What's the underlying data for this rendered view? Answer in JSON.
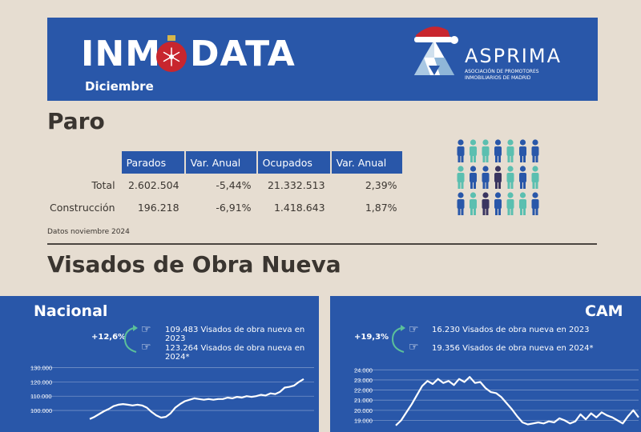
{
  "header": {
    "brand_left": "INM",
    "brand_right": "DATA",
    "month": "Diciembre",
    "partner_name": "ASPRIMA",
    "partner_subtitle_1": "ASOCIACIÓN DE PROMOTORES",
    "partner_subtitle_2": "INMOBILIARIOS DE MADRID",
    "colors": {
      "banner": "#2957a9",
      "background": "#e6ddd1",
      "ornament": "#c8262e"
    }
  },
  "paro": {
    "title": "Paro",
    "columns": [
      "Parados",
      "Var. Anual",
      "Ocupados",
      "Var. Anual"
    ],
    "rows": [
      {
        "label": "Total",
        "values": [
          "2.602.504",
          "-5,44%",
          "21.332.513",
          "2,39%"
        ]
      },
      {
        "label": "Construcción",
        "values": [
          "196.218",
          "-6,91%",
          "1.418.643",
          "1,87%"
        ]
      }
    ],
    "source": "Datos noviembre 2024"
  },
  "visados": {
    "title": "Visados de Obra Nueva",
    "nacional": {
      "title": "Nacional",
      "growth": "+12,6%",
      "note_2023": "109.483 Visados de obra nueva en 2023",
      "note_2024": "123.264 Visados de obra nueva en 2024*",
      "y_ticks": [
        "130.000",
        "120.000",
        "110.000",
        "100.000"
      ]
    },
    "cam": {
      "title": "CAM",
      "growth": "+19,3%",
      "note_2023": "16.230 Visados de obra nueva en 2023",
      "note_2024": "19.356 Visados de obra nueva en 2024*",
      "y_ticks": [
        "24.000",
        "23.000",
        "22.000",
        "21.000",
        "20.000",
        "19.000"
      ]
    }
  },
  "chart_data": [
    {
      "type": "line",
      "title": "Nacional",
      "ylim": [
        95000,
        132000
      ],
      "y_ticks": [
        100000,
        110000,
        120000,
        130000
      ],
      "values": [
        94000,
        95500,
        97500,
        99500,
        101000,
        103000,
        104000,
        104500,
        104000,
        103500,
        104000,
        103500,
        102000,
        99000,
        96500,
        95000,
        95500,
        98000,
        102000,
        104500,
        106500,
        107500,
        108500,
        108000,
        107500,
        108000,
        107500,
        108000,
        108000,
        109000,
        108500,
        109500,
        109000,
        110000,
        109500,
        110000,
        111000,
        110500,
        112000,
        111500,
        113000,
        116000,
        116500,
        117500,
        120000,
        122000
      ]
    },
    {
      "type": "line",
      "title": "CAM",
      "ylim": [
        18800,
        24500
      ],
      "y_ticks": [
        19000,
        20000,
        21000,
        22000,
        23000,
        24000
      ],
      "values": [
        18500,
        19000,
        19800,
        20600,
        21500,
        22400,
        22900,
        22600,
        23100,
        22700,
        22900,
        22500,
        23100,
        22800,
        23300,
        22700,
        22800,
        22200,
        21800,
        21700,
        21300,
        20700,
        20100,
        19400,
        18800,
        18600,
        18700,
        18800,
        18700,
        18900,
        18800,
        19200,
        19000,
        18700,
        18900,
        19600,
        19100,
        19700,
        19300,
        19800,
        19500,
        19300,
        19000,
        18700,
        19400,
        20000,
        19300
      ]
    }
  ]
}
